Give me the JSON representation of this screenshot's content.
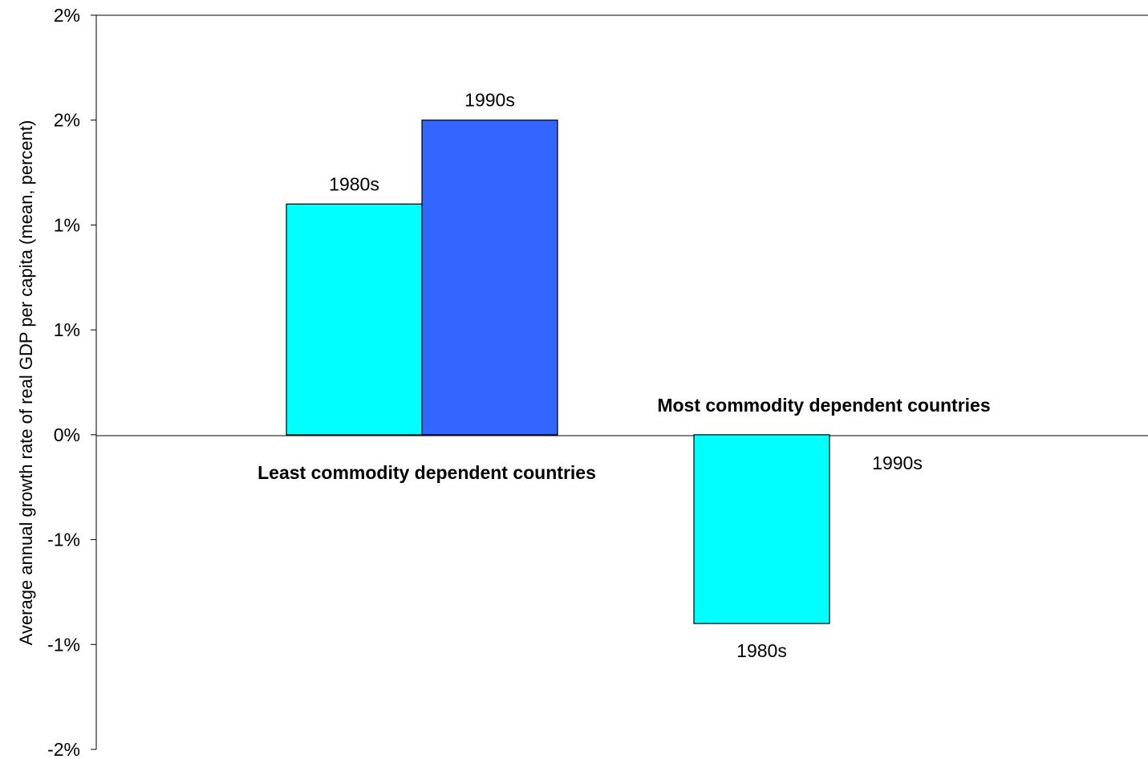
{
  "chart_data": {
    "type": "bar",
    "ylabel": "Average annual growth rate of real GDP per capita (mean, percent)",
    "ylim": [
      -1.5,
      2.0
    ],
    "y_ticks": [
      -1.5,
      -1.0,
      -0.5,
      0.0,
      0.5,
      1.0,
      1.5,
      2.0
    ],
    "y_tick_labels": [
      "-2%",
      "-1%",
      "-1%",
      "0%",
      "1%",
      "1%",
      "2%",
      "2%"
    ],
    "grid": false,
    "categories": [
      "Least commodity dependent countries",
      "Most commodity dependent countries"
    ],
    "series": [
      {
        "name": "1980s",
        "color": "#00FFFF",
        "values": [
          1.1,
          -0.9
        ]
      },
      {
        "name": "1990s",
        "color": "#3366FF",
        "values": [
          1.5,
          0.0
        ]
      }
    ],
    "bar_labels": [
      [
        "1980s",
        "1990s"
      ],
      [
        "1980s",
        "1990s"
      ]
    ]
  }
}
